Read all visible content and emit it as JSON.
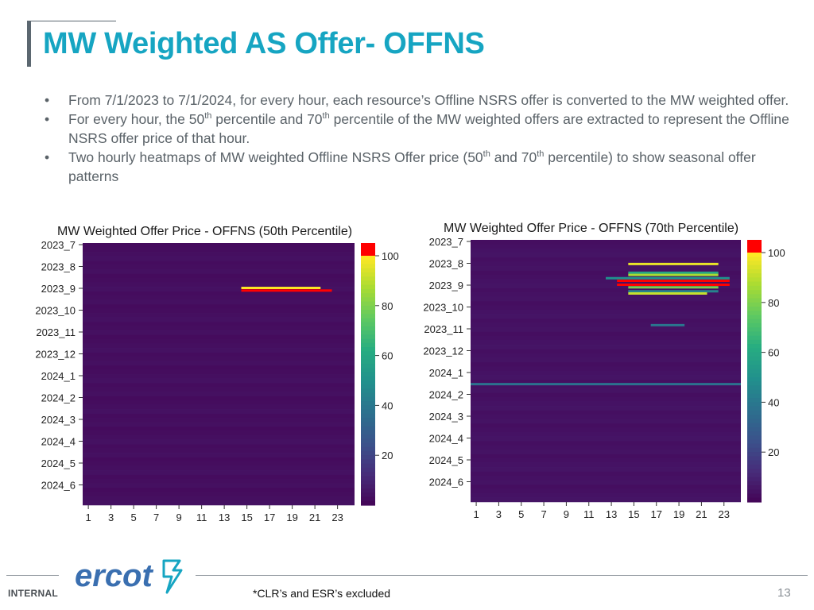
{
  "slide": {
    "title": "MW Weighted AS Offer- OFFNS",
    "bullets": [
      {
        "pre": "From 7/1/2023 to 7/1/2024, for every hour, each resource’s Offline NSRS offer is converted to the MW weighted offer.",
        "sup1": "",
        "mid": "",
        "sup2": "",
        "post": ""
      },
      {
        "pre": "For every hour, the 50",
        "sup1": "th",
        "mid": " percentile and 70",
        "sup2": "th",
        "post": " percentile of the MW weighted offers are extracted to represent the Offline NSRS offer price of that hour."
      },
      {
        "pre": "Two hourly heatmaps of MW weighted Offline NSRS Offer price (50",
        "sup1": "th",
        "mid": " and 70",
        "sup2": "th",
        "post": " percentile) to show seasonal offer patterns"
      }
    ],
    "bullet_symbol": "•",
    "footer": {
      "internal": "INTERNAL",
      "note": "*CLR’s and ESR’s excluded",
      "page": "13",
      "logo_text": "ercot"
    },
    "colors": {
      "title": "#16a5c2",
      "heat_base": "#431f6b",
      "logo": "#3a6fb0",
      "logo_accent": "#16a5c2"
    }
  },
  "chart_data": [
    {
      "type": "heatmap",
      "title": "MW Weighted Offer Price - OFFNS (50th Percentile)",
      "y_categories": [
        "2023_7",
        "2023_8",
        "2023_9",
        "2023_10",
        "2023_11",
        "2023_12",
        "2024_1",
        "2024_2",
        "2024_3",
        "2024_4",
        "2024_5",
        "2024_6"
      ],
      "x_ticks": [
        "1",
        "3",
        "5",
        "7",
        "9",
        "11",
        "13",
        "15",
        "17",
        "19",
        "21",
        "23"
      ],
      "x_range": [
        1,
        24
      ],
      "colorbar": {
        "ticks": [
          20,
          40,
          60,
          80,
          100
        ],
        "range": [
          0,
          105
        ],
        "over_color": "#ff0000",
        "colormap": "viridis"
      },
      "base_value": 3,
      "highlights": [
        {
          "month": "2023_9",
          "date_frac": 0.12,
          "hour_start": 15,
          "hour_end": 22,
          "value": 105
        },
        {
          "month": "2023_9",
          "date_frac": 0.0,
          "hour_start": 15,
          "hour_end": 21,
          "value": 100
        }
      ]
    },
    {
      "type": "heatmap",
      "title": "MW Weighted Offer Price - OFFNS (70th Percentile)",
      "y_categories": [
        "2023_7",
        "2023_8",
        "2023_9",
        "2023_10",
        "2023_11",
        "2023_12",
        "2024_1",
        "2024_2",
        "2024_3",
        "2024_4",
        "2024_5",
        "2024_6"
      ],
      "x_ticks": [
        "1",
        "3",
        "5",
        "7",
        "9",
        "11",
        "13",
        "15",
        "17",
        "19",
        "21",
        "23"
      ],
      "x_range": [
        1,
        24
      ],
      "colorbar": {
        "ticks": [
          20,
          40,
          60,
          80,
          100
        ],
        "range": [
          0,
          105
        ],
        "over_color": "#ff0000",
        "colormap": "viridis"
      },
      "base_value": 4,
      "highlights": [
        {
          "month": "2023_8",
          "date_frac": 0.05,
          "hour_start": 15,
          "hour_end": 22,
          "value": 97
        },
        {
          "month": "2023_8",
          "date_frac": 0.45,
          "hour_start": 15,
          "hour_end": 22,
          "value": 60
        },
        {
          "month": "2023_8",
          "date_frac": 0.55,
          "hour_start": 15,
          "hour_end": 22,
          "value": 88
        },
        {
          "month": "2023_8",
          "date_frac": 0.7,
          "hour_start": 13,
          "hour_end": 23,
          "value": 50
        },
        {
          "month": "2023_8",
          "date_frac": 0.82,
          "hour_start": 14,
          "hour_end": 23,
          "value": 105
        },
        {
          "month": "2023_9",
          "date_frac": 0.0,
          "hour_start": 14,
          "hour_end": 23,
          "value": 105
        },
        {
          "month": "2023_9",
          "date_frac": 0.12,
          "hour_start": 15,
          "hour_end": 22,
          "value": 80
        },
        {
          "month": "2023_9",
          "date_frac": 0.3,
          "hour_start": 15,
          "hour_end": 22,
          "value": 45
        },
        {
          "month": "2023_9",
          "date_frac": 0.4,
          "hour_start": 15,
          "hour_end": 21,
          "value": 92
        },
        {
          "month": "2023_10",
          "date_frac": 0.85,
          "hour_start": 17,
          "hour_end": 19,
          "value": 40
        },
        {
          "month": "2024_1",
          "date_frac": 0.55,
          "hour_start": 1,
          "hour_end": 24,
          "value": 38
        }
      ]
    }
  ]
}
